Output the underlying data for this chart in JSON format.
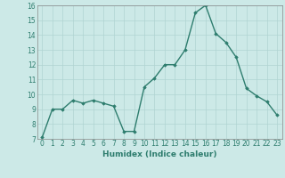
{
  "x": [
    0,
    1,
    2,
    3,
    4,
    5,
    6,
    7,
    8,
    9,
    10,
    11,
    12,
    13,
    14,
    15,
    16,
    17,
    18,
    19,
    20,
    21,
    22,
    23
  ],
  "y": [
    7.1,
    9.0,
    9.0,
    9.6,
    9.4,
    9.6,
    9.4,
    9.2,
    7.5,
    7.5,
    10.5,
    11.1,
    12.0,
    12.0,
    13.0,
    15.5,
    16.0,
    14.1,
    13.5,
    12.5,
    10.4,
    9.9,
    9.5,
    8.6
  ],
  "line_color": "#2e7d6e",
  "marker": "D",
  "marker_size": 1.8,
  "line_width": 1.0,
  "bg_color": "#cce9e7",
  "grid_color": "#b0d4d2",
  "xlabel": "Humidex (Indice chaleur)",
  "xlim": [
    -0.5,
    23.5
  ],
  "ylim": [
    7,
    16
  ],
  "yticks": [
    7,
    8,
    9,
    10,
    11,
    12,
    13,
    14,
    15,
    16
  ],
  "xticks": [
    0,
    1,
    2,
    3,
    4,
    5,
    6,
    7,
    8,
    9,
    10,
    11,
    12,
    13,
    14,
    15,
    16,
    17,
    18,
    19,
    20,
    21,
    22,
    23
  ],
  "xlabel_fontsize": 6.5,
  "tick_fontsize": 5.5
}
